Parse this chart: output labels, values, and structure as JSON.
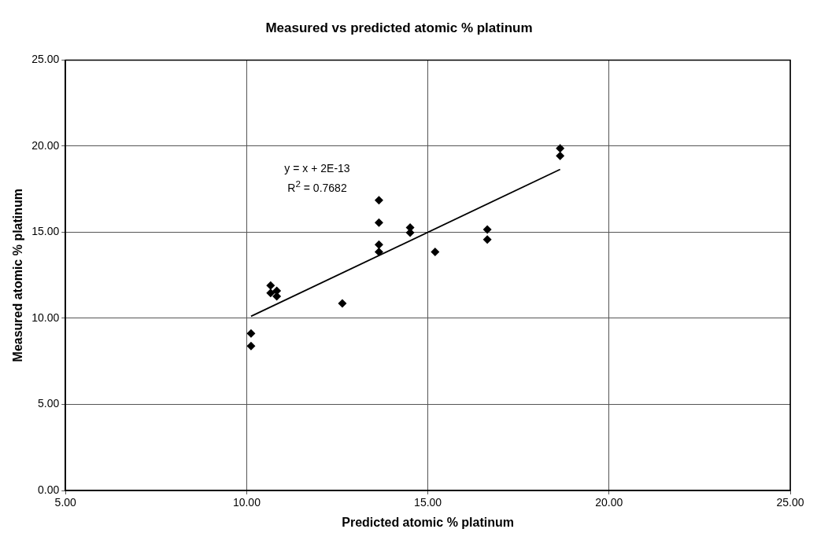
{
  "chart_data": {
    "type": "scatter",
    "title": "Measured vs predicted atomic % platinum",
    "xlabel": "Predicted atomic % platinum",
    "ylabel": "Measured atomic % platinum",
    "xlim": [
      5,
      25
    ],
    "ylim": [
      0,
      25
    ],
    "xticks": [
      {
        "value": 5,
        "label": "5.00"
      },
      {
        "value": 10,
        "label": "10.00"
      },
      {
        "value": 15,
        "label": "15.00"
      },
      {
        "value": 20,
        "label": "20.00"
      },
      {
        "value": 25,
        "label": "25.00"
      }
    ],
    "yticks": [
      {
        "value": 0,
        "label": "0.00"
      },
      {
        "value": 5,
        "label": "5.00"
      },
      {
        "value": 10,
        "label": "10.00"
      },
      {
        "value": 15,
        "label": "15.00"
      },
      {
        "value": 20,
        "label": "20.00"
      },
      {
        "value": 25,
        "label": "25.00"
      }
    ],
    "grid": true,
    "marker": "diamond",
    "annotations": [
      "y = x + 2E-13",
      "R$^{2}$ = 0.7682"
    ],
    "series": [
      {
        "color": "#000000",
        "x": [
          10.12,
          10.12,
          10.66,
          10.66,
          10.83,
          10.83,
          12.64,
          13.65,
          13.65,
          13.65,
          13.65,
          14.51,
          14.51,
          15.2,
          16.64,
          16.64,
          18.65,
          18.65
        ],
        "values": [
          9.12,
          8.39,
          11.9,
          11.47,
          11.6,
          11.28,
          10.87,
          16.86,
          15.56,
          14.28,
          13.86,
          15.27,
          14.97,
          13.86,
          15.16,
          14.57,
          19.87,
          19.44
        ]
      },
      {
        "type": "line",
        "marker": "none",
        "color": "#000000",
        "x": [
          10.12,
          18.65
        ],
        "values": [
          10.12,
          18.65
        ]
      }
    ]
  }
}
